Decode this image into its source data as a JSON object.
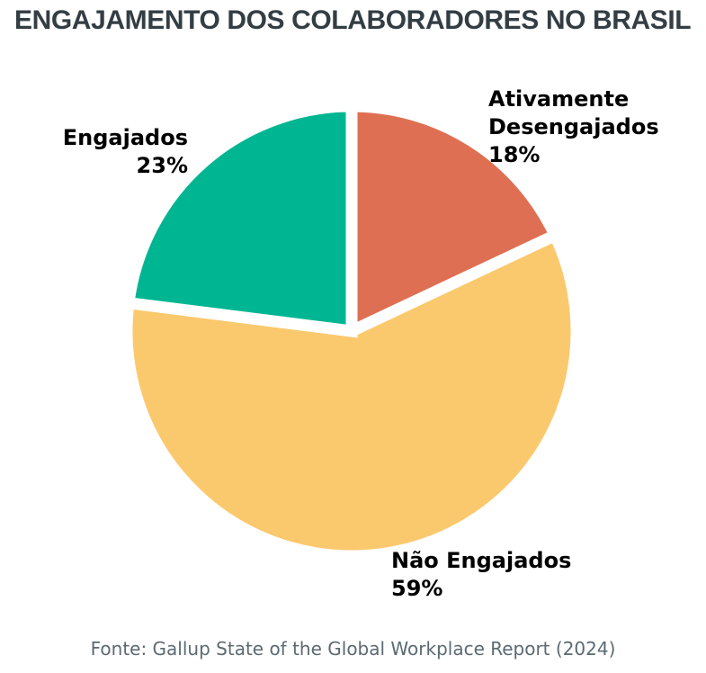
{
  "chart_data": {
    "type": "pie",
    "title": "ENGAJAMENTO DOS COLABORADORES NO BRASIL",
    "source": "Fonte: Gallup State of the Global Workplace Report (2024)",
    "start_angle_deg": 90,
    "direction": "clockwise",
    "legend": "none",
    "background": "#FFFFFF",
    "title_color": "#333E44",
    "source_color": "#5B6A72",
    "label_color": "#000000",
    "wedge_edge_color": "#FFFFFF",
    "wedge_edge_width": 13,
    "slices": [
      {
        "name": "Ativamente Desengajados",
        "value_pct": 18,
        "color": "#DF6F52",
        "label_lines": [
          "Ativamente",
          "Desengajados",
          "18%"
        ]
      },
      {
        "name": "Não Engajados",
        "value_pct": 59,
        "color": "#FBC96D",
        "label_lines": [
          "Não Engajados",
          "59%"
        ]
      },
      {
        "name": "Engajados",
        "value_pct": 23,
        "color": "#00B692",
        "label_lines": [
          "Engajados",
          "23%"
        ]
      }
    ]
  }
}
